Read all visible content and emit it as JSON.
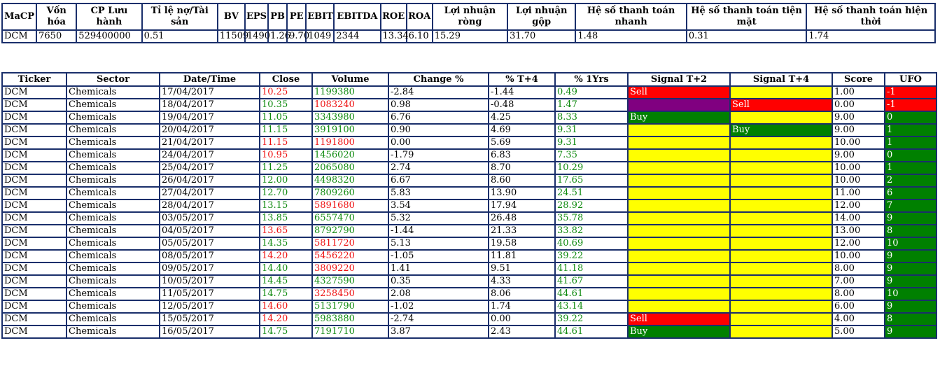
{
  "fundamentals": {
    "headers": [
      "MaCP",
      "Vốn hóa",
      "CP Lưu hành",
      "Tỉ lệ nợ/Tài sản",
      "BV",
      "EPS",
      "PB",
      "PE",
      "EBIT",
      "EBITDA",
      "ROE",
      "ROA",
      "Lợi nhuận ròng",
      "Lợi nhuận gộp",
      "Hệ số thanh toán nhanh",
      "Hệ số thanh toán tiện mặt",
      "Hệ số thanh toán hiện thời"
    ],
    "values": [
      "DCM",
      "7650",
      "529400000",
      "0.51",
      "11509",
      "1490",
      "1.26",
      "9.70",
      "1049",
      "2344",
      "13.34",
      "6.10",
      "15.29",
      "31.70",
      "1.48",
      "0.31",
      "1.74"
    ]
  },
  "trades": {
    "headers": [
      "Ticker",
      "Sector",
      "Date/Time",
      "Close",
      "Volume",
      "Change %",
      "% T+4",
      "% 1Yrs",
      "Signal T+2",
      "Signal T+4",
      "Score",
      "UFO"
    ],
    "colors": {
      "up": "#0f8a0f",
      "down": "#ee1111",
      "sell": "#ff0000",
      "buy": "#008000",
      "neutral": "#ffff00",
      "purple": "#800080"
    },
    "rows": [
      {
        "ticker": "DCM",
        "sector": "Chemicals",
        "date": "17/04/2017",
        "close": "10.25",
        "close_dir": "down",
        "volume": "1199380",
        "volume_dir": "up",
        "change": "-2.84",
        "t4": "-1.44",
        "t4_dir": "none",
        "y1": "0.49",
        "y1_dir": "up",
        "sig2": "Sell",
        "sig2_type": "sell",
        "sig4": "",
        "sig4_type": "none",
        "score": "1.00",
        "ufo": "-1",
        "ufo_type": "neg"
      },
      {
        "ticker": "DCM",
        "sector": "Chemicals",
        "date": "18/04/2017",
        "close": "10.35",
        "close_dir": "up",
        "volume": "1083240",
        "volume_dir": "down",
        "change": "0.98",
        "t4": "-0.48",
        "t4_dir": "none",
        "y1": "1.47",
        "y1_dir": "up",
        "sig2": "",
        "sig2_type": "purple",
        "sig4": "Sell",
        "sig4_type": "sell",
        "score": "0.00",
        "ufo": "-1",
        "ufo_type": "neg"
      },
      {
        "ticker": "DCM",
        "sector": "Chemicals",
        "date": "19/04/2017",
        "close": "11.05",
        "close_dir": "up",
        "volume": "3343980",
        "volume_dir": "up",
        "change": "6.76",
        "t4": "4.25",
        "t4_dir": "none",
        "y1": "8.33",
        "y1_dir": "up",
        "sig2": "Buy",
        "sig2_type": "buy",
        "sig4": "",
        "sig4_type": "none",
        "score": "9.00",
        "ufo": "0",
        "ufo_type": "pos"
      },
      {
        "ticker": "DCM",
        "sector": "Chemicals",
        "date": "20/04/2017",
        "close": "11.15",
        "close_dir": "up",
        "volume": "3919100",
        "volume_dir": "up",
        "change": "0.90",
        "t4": "4.69",
        "t4_dir": "none",
        "y1": "9.31",
        "y1_dir": "up",
        "sig2": "",
        "sig2_type": "none",
        "sig4": "Buy",
        "sig4_type": "buy",
        "score": "9.00",
        "ufo": "1",
        "ufo_type": "pos"
      },
      {
        "ticker": "DCM",
        "sector": "Chemicals",
        "date": "21/04/2017",
        "close": "11.15",
        "close_dir": "down",
        "volume": "1191800",
        "volume_dir": "down",
        "change": "0.00",
        "t4": "5.69",
        "t4_dir": "none",
        "y1": "9.31",
        "y1_dir": "up",
        "sig2": "",
        "sig2_type": "none",
        "sig4": "",
        "sig4_type": "none",
        "score": "10.00",
        "ufo": "1",
        "ufo_type": "pos"
      },
      {
        "ticker": "DCM",
        "sector": "Chemicals",
        "date": "24/04/2017",
        "close": "10.95",
        "close_dir": "down",
        "volume": "1456020",
        "volume_dir": "up",
        "change": "-1.79",
        "t4": "6.83",
        "t4_dir": "none",
        "y1": "7.35",
        "y1_dir": "up",
        "sig2": "",
        "sig2_type": "none",
        "sig4": "",
        "sig4_type": "none",
        "score": "9.00",
        "ufo": "0",
        "ufo_type": "pos"
      },
      {
        "ticker": "DCM",
        "sector": "Chemicals",
        "date": "25/04/2017",
        "close": "11.25",
        "close_dir": "up",
        "volume": "2065080",
        "volume_dir": "up",
        "change": "2.74",
        "t4": "8.70",
        "t4_dir": "none",
        "y1": "10.29",
        "y1_dir": "up",
        "sig2": "",
        "sig2_type": "none",
        "sig4": "",
        "sig4_type": "none",
        "score": "10.00",
        "ufo": "1",
        "ufo_type": "pos"
      },
      {
        "ticker": "DCM",
        "sector": "Chemicals",
        "date": "26/04/2017",
        "close": "12.00",
        "close_dir": "up",
        "volume": "4498320",
        "volume_dir": "up",
        "change": "6.67",
        "t4": "8.60",
        "t4_dir": "none",
        "y1": "17.65",
        "y1_dir": "up",
        "sig2": "",
        "sig2_type": "none",
        "sig4": "",
        "sig4_type": "none",
        "score": "10.00",
        "ufo": "2",
        "ufo_type": "pos"
      },
      {
        "ticker": "DCM",
        "sector": "Chemicals",
        "date": "27/04/2017",
        "close": "12.70",
        "close_dir": "up",
        "volume": "7809260",
        "volume_dir": "up",
        "change": "5.83",
        "t4": "13.90",
        "t4_dir": "none",
        "y1": "24.51",
        "y1_dir": "up",
        "sig2": "",
        "sig2_type": "none",
        "sig4": "",
        "sig4_type": "none",
        "score": "11.00",
        "ufo": "6",
        "ufo_type": "pos"
      },
      {
        "ticker": "DCM",
        "sector": "Chemicals",
        "date": "28/04/2017",
        "close": "13.15",
        "close_dir": "up",
        "volume": "5891680",
        "volume_dir": "down",
        "change": "3.54",
        "t4": "17.94",
        "t4_dir": "none",
        "y1": "28.92",
        "y1_dir": "up",
        "sig2": "",
        "sig2_type": "none",
        "sig4": "",
        "sig4_type": "none",
        "score": "12.00",
        "ufo": "7",
        "ufo_type": "pos"
      },
      {
        "ticker": "DCM",
        "sector": "Chemicals",
        "date": "03/05/2017",
        "close": "13.85",
        "close_dir": "up",
        "volume": "6557470",
        "volume_dir": "up",
        "change": "5.32",
        "t4": "26.48",
        "t4_dir": "none",
        "y1": "35.78",
        "y1_dir": "up",
        "sig2": "",
        "sig2_type": "none",
        "sig4": "",
        "sig4_type": "none",
        "score": "14.00",
        "ufo": "9",
        "ufo_type": "pos"
      },
      {
        "ticker": "DCM",
        "sector": "Chemicals",
        "date": "04/05/2017",
        "close": "13.65",
        "close_dir": "down",
        "volume": "8792790",
        "volume_dir": "up",
        "change": "-1.44",
        "t4": "21.33",
        "t4_dir": "none",
        "y1": "33.82",
        "y1_dir": "up",
        "sig2": "",
        "sig2_type": "none",
        "sig4": "",
        "sig4_type": "none",
        "score": "13.00",
        "ufo": "8",
        "ufo_type": "pos"
      },
      {
        "ticker": "DCM",
        "sector": "Chemicals",
        "date": "05/05/2017",
        "close": "14.35",
        "close_dir": "up",
        "volume": "5811720",
        "volume_dir": "down",
        "change": "5.13",
        "t4": "19.58",
        "t4_dir": "none",
        "y1": "40.69",
        "y1_dir": "up",
        "sig2": "",
        "sig2_type": "none",
        "sig4": "",
        "sig4_type": "none",
        "score": "12.00",
        "ufo": "10",
        "ufo_type": "pos"
      },
      {
        "ticker": "DCM",
        "sector": "Chemicals",
        "date": "08/05/2017",
        "close": "14.20",
        "close_dir": "down",
        "volume": "5456220",
        "volume_dir": "down",
        "change": "-1.05",
        "t4": "11.81",
        "t4_dir": "none",
        "y1": "39.22",
        "y1_dir": "up",
        "sig2": "",
        "sig2_type": "none",
        "sig4": "",
        "sig4_type": "none",
        "score": "10.00",
        "ufo": "9",
        "ufo_type": "pos"
      },
      {
        "ticker": "DCM",
        "sector": "Chemicals",
        "date": "09/05/2017",
        "close": "14.40",
        "close_dir": "up",
        "volume": "3809220",
        "volume_dir": "down",
        "change": "1.41",
        "t4": "9.51",
        "t4_dir": "none",
        "y1": "41.18",
        "y1_dir": "up",
        "sig2": "",
        "sig2_type": "none",
        "sig4": "",
        "sig4_type": "none",
        "score": "8.00",
        "ufo": "9",
        "ufo_type": "pos"
      },
      {
        "ticker": "DCM",
        "sector": "Chemicals",
        "date": "10/05/2017",
        "close": "14.45",
        "close_dir": "up",
        "volume": "4327590",
        "volume_dir": "up",
        "change": "0.35",
        "t4": "4.33",
        "t4_dir": "none",
        "y1": "41.67",
        "y1_dir": "up",
        "sig2": "",
        "sig2_type": "none",
        "sig4": "",
        "sig4_type": "none",
        "score": "7.00",
        "ufo": "9",
        "ufo_type": "pos"
      },
      {
        "ticker": "DCM",
        "sector": "Chemicals",
        "date": "11/05/2017",
        "close": "14.75",
        "close_dir": "up",
        "volume": "3258450",
        "volume_dir": "down",
        "change": "2.08",
        "t4": "8.06",
        "t4_dir": "none",
        "y1": "44.61",
        "y1_dir": "up",
        "sig2": "",
        "sig2_type": "none",
        "sig4": "",
        "sig4_type": "none",
        "score": "8.00",
        "ufo": "10",
        "ufo_type": "pos"
      },
      {
        "ticker": "DCM",
        "sector": "Chemicals",
        "date": "12/05/2017",
        "close": "14.60",
        "close_dir": "down",
        "volume": "5131790",
        "volume_dir": "up",
        "change": "-1.02",
        "t4": "1.74",
        "t4_dir": "none",
        "y1": "43.14",
        "y1_dir": "up",
        "sig2": "",
        "sig2_type": "none",
        "sig4": "",
        "sig4_type": "none",
        "score": "6.00",
        "ufo": "9",
        "ufo_type": "pos"
      },
      {
        "ticker": "DCM",
        "sector": "Chemicals",
        "date": "15/05/2017",
        "close": "14.20",
        "close_dir": "down",
        "volume": "5983880",
        "volume_dir": "up",
        "change": "-2.74",
        "t4": "0.00",
        "t4_dir": "none",
        "y1": "39.22",
        "y1_dir": "up",
        "sig2": "Sell",
        "sig2_type": "sell",
        "sig4": "",
        "sig4_type": "none",
        "score": "4.00",
        "ufo": "8",
        "ufo_type": "pos"
      },
      {
        "ticker": "DCM",
        "sector": "Chemicals",
        "date": "16/05/2017",
        "close": "14.75",
        "close_dir": "up",
        "volume": "7191710",
        "volume_dir": "up",
        "change": "3.87",
        "t4": "2.43",
        "t4_dir": "none",
        "y1": "44.61",
        "y1_dir": "up",
        "sig2": "Buy",
        "sig2_type": "buy",
        "sig4": "",
        "sig4_type": "none",
        "score": "5.00",
        "ufo": "9",
        "ufo_type": "pos"
      }
    ]
  }
}
